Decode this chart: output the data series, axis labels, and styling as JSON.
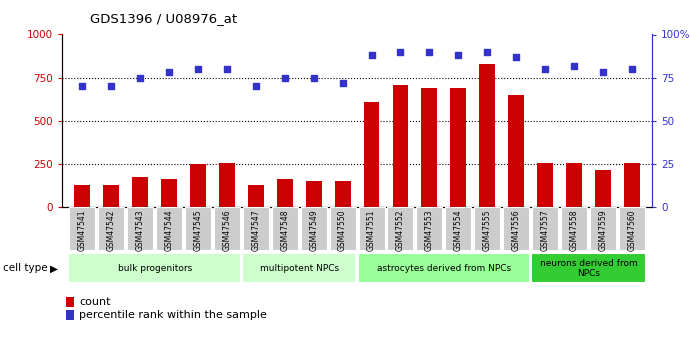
{
  "title": "GDS1396 / U08976_at",
  "samples": [
    "GSM47541",
    "GSM47542",
    "GSM47543",
    "GSM47544",
    "GSM47545",
    "GSM47546",
    "GSM47547",
    "GSM47548",
    "GSM47549",
    "GSM47550",
    "GSM47551",
    "GSM47552",
    "GSM47553",
    "GSM47554",
    "GSM47555",
    "GSM47556",
    "GSM47557",
    "GSM47558",
    "GSM47559",
    "GSM47560"
  ],
  "counts": [
    130,
    130,
    175,
    160,
    250,
    255,
    130,
    165,
    150,
    150,
    610,
    710,
    690,
    690,
    830,
    650,
    255,
    255,
    215,
    255
  ],
  "percentiles": [
    70,
    70,
    75,
    78,
    80,
    80,
    70,
    75,
    75,
    72,
    88,
    90,
    90,
    88,
    90,
    87,
    80,
    82,
    78,
    80
  ],
  "bar_color": "#cc0000",
  "dot_color": "#3333cc",
  "cell_groups": [
    {
      "label": "bulk progenitors",
      "start": 0,
      "end": 5,
      "color": "#ccffcc"
    },
    {
      "label": "multipotent NPCs",
      "start": 6,
      "end": 9,
      "color": "#ccffcc"
    },
    {
      "label": "astrocytes derived from NPCs",
      "start": 10,
      "end": 15,
      "color": "#99ff99"
    },
    {
      "label": "neurons derived from\nNPCs",
      "start": 16,
      "end": 19,
      "color": "#33cc33"
    }
  ],
  "ylim_left": [
    0,
    1000
  ],
  "ylim_right": [
    0,
    100
  ],
  "yticks_left": [
    0,
    250,
    500,
    750,
    1000
  ],
  "yticks_right": [
    0,
    25,
    50,
    75,
    100
  ],
  "ytick_labels_right": [
    "0",
    "25",
    "50",
    "75",
    "100%"
  ],
  "grid_values": [
    250,
    500,
    750
  ],
  "left_axis_color": "#cc0000",
  "right_axis_color": "#3333cc",
  "legend_count_label": "count",
  "legend_pct_label": "percentile rank within the sample",
  "cell_type_label": "cell type",
  "background_color": "#ffffff",
  "tick_bg_color": "#cccccc"
}
